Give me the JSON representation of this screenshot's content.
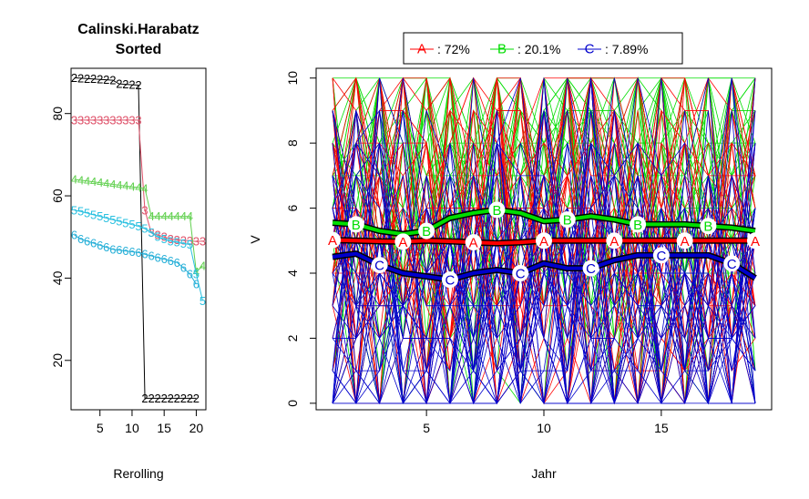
{
  "colors": {
    "A": "#ff0000",
    "B": "#00dd00",
    "C": "#0000cc",
    "c2": "#000000",
    "c3": "#df536b",
    "c4": "#61d04f",
    "c5": "#2ac0e0",
    "c6": "#28b0d8"
  },
  "chart_data": [
    {
      "type": "line",
      "title": "Calinski.Harabatz",
      "subtitle": "Sorted",
      "xlabel": "Rerolling",
      "ylabel": "",
      "xlim": [
        0.5,
        21.5
      ],
      "ylim": [
        8,
        91
      ],
      "xticks": [
        5,
        10,
        15,
        20
      ],
      "yticks": [
        20,
        40,
        60,
        80
      ],
      "x": [
        1,
        2,
        3,
        4,
        5,
        6,
        7,
        8,
        9,
        10,
        11,
        12,
        13,
        14,
        15,
        16,
        17,
        18,
        19,
        20,
        21
      ],
      "series": [
        {
          "name": "2",
          "color": "c2",
          "values": [
            88.7,
            88.6,
            88.5,
            88.4,
            88.3,
            88.2,
            88.1,
            87.2,
            87.1,
            87.0,
            86.9,
            10.8,
            10.8,
            10.8,
            10.8,
            10.8,
            10.8,
            10.8,
            10.8,
            10.8,
            null
          ]
        },
        {
          "name": "3",
          "color": "c3",
          "values": [
            78.4,
            78.4,
            78.4,
            78.4,
            78.4,
            78.4,
            78.4,
            78.4,
            78.4,
            78.4,
            78.4,
            56.5,
            51.0,
            50.5,
            50.0,
            49.5,
            49.3,
            49.2,
            49.1,
            48.9,
            49.0
          ]
        },
        {
          "name": "4",
          "color": "c4",
          "values": [
            64.0,
            63.8,
            63.6,
            63.4,
            63.2,
            63.0,
            62.8,
            62.6,
            62.4,
            62.2,
            62.0,
            61.8,
            55.0,
            55.0,
            55.0,
            55.0,
            55.0,
            55.0,
            55.0,
            41.5,
            43.0
          ]
        },
        {
          "name": "5",
          "color": "c5",
          "values": [
            56.5,
            56.2,
            55.8,
            55.4,
            55.0,
            54.6,
            54.2,
            53.8,
            53.4,
            53.0,
            52.6,
            52.0,
            51.0,
            50.0,
            49.5,
            49.0,
            48.7,
            48.4,
            48.2,
            41.0,
            34.5
          ]
        },
        {
          "name": "6",
          "color": "c6",
          "values": [
            50.5,
            49.5,
            49.0,
            48.5,
            48.0,
            47.5,
            47.0,
            46.8,
            46.6,
            46.4,
            46.2,
            45.8,
            45.4,
            45.0,
            44.6,
            44.2,
            43.8,
            42.5,
            41.0,
            38.5,
            null
          ]
        }
      ]
    },
    {
      "type": "line",
      "title": "",
      "xlabel": "Jahr",
      "ylabel": "V",
      "xlim": [
        0.3,
        19.7
      ],
      "ylim": [
        -0.2,
        10.3
      ],
      "xticks": [
        5,
        10,
        15
      ],
      "yticks": [
        0,
        2,
        4,
        6,
        8,
        10
      ],
      "x": [
        1,
        2,
        3,
        4,
        5,
        6,
        7,
        8,
        9,
        10,
        11,
        12,
        13,
        14,
        15,
        16,
        17,
        18,
        19
      ],
      "legend": {
        "placement": "top",
        "entries": [
          {
            "key": "A",
            "label": ":  72%",
            "color": "A"
          },
          {
            "key": "B",
            "label": ": 20.1%",
            "color": "B"
          },
          {
            "key": "C",
            "label": ": 7.89%",
            "color": "C"
          }
        ]
      },
      "series": [
        {
          "name": "A",
          "color": "A",
          "share": "72%",
          "values": [
            5.02,
            5.0,
            4.98,
            4.97,
            5.0,
            4.98,
            4.95,
            4.92,
            4.95,
            5.0,
            5.0,
            5.0,
            5.0,
            5.0,
            5.0,
            5.0,
            5.0,
            5.0,
            5.0
          ],
          "marker_x": [
            1,
            4,
            7,
            10,
            13,
            16,
            19
          ]
        },
        {
          "name": "B",
          "color": "B",
          "share": "20.1%",
          "values": [
            5.55,
            5.5,
            5.3,
            5.2,
            5.3,
            5.7,
            5.85,
            5.95,
            5.85,
            5.6,
            5.65,
            5.75,
            5.65,
            5.5,
            5.5,
            5.5,
            5.45,
            5.4,
            5.3
          ],
          "marker_x": [
            2,
            5,
            8,
            11,
            14,
            17
          ]
        },
        {
          "name": "C",
          "color": "C",
          "share": "7.89%",
          "values": [
            4.5,
            4.6,
            4.25,
            4.0,
            3.9,
            3.8,
            4.0,
            4.1,
            4.0,
            4.3,
            4.15,
            4.15,
            4.4,
            4.55,
            4.55,
            4.55,
            4.55,
            4.3,
            3.85
          ],
          "marker_x": [
            3,
            6,
            9,
            12,
            15,
            18
          ]
        }
      ],
      "background_traces": {
        "per_color": 40,
        "value_range": [
          0,
          10
        ]
      }
    }
  ]
}
